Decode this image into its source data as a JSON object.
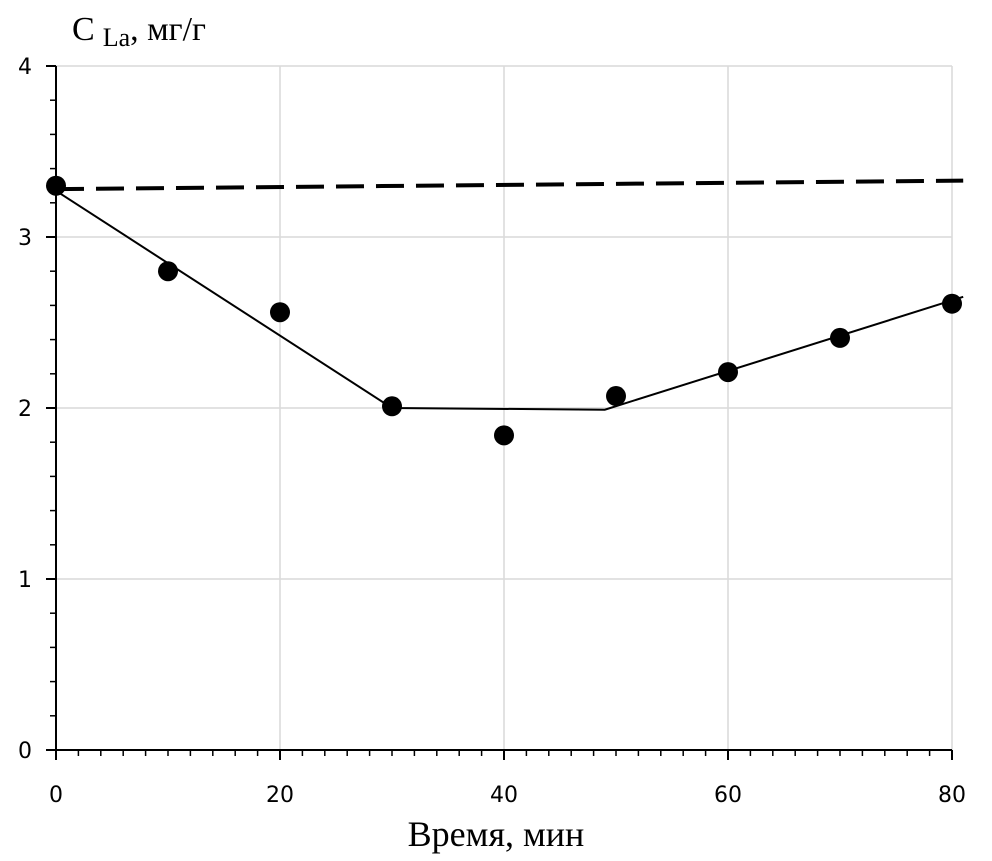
{
  "chart_data": {
    "type": "scatter",
    "y_title": {
      "main": "C",
      "sub": "La",
      "unit": ", мг/г"
    },
    "xlabel": "Время, мин",
    "xlim": [
      0,
      80
    ],
    "ylim": [
      0,
      4
    ],
    "x_ticks": [
      0,
      20,
      40,
      60,
      80
    ],
    "x_tick_labels": [
      "0",
      "20",
      "40",
      "60",
      "80"
    ],
    "y_ticks": [
      0,
      1,
      2,
      3,
      4
    ],
    "y_tick_labels": [
      "0",
      "1",
      "2",
      "3",
      "4"
    ],
    "x_minor_step": 2,
    "y_minor_step": 0.2,
    "grid": true,
    "series": [
      {
        "type": "scatter",
        "x": [
          0,
          10,
          20,
          30,
          40,
          50,
          60,
          70,
          80
        ],
        "y": [
          3.3,
          2.8,
          2.56,
          2.01,
          1.84,
          2.07,
          2.21,
          2.41,
          2.61
        ],
        "color": "#000000"
      },
      {
        "type": "line",
        "style": "solid",
        "x": [
          0,
          30,
          49,
          81
        ],
        "y": [
          3.27,
          2.0,
          1.99,
          2.65
        ],
        "color": "#000000"
      },
      {
        "type": "line",
        "style": "dashed",
        "x": [
          0,
          81
        ],
        "y": [
          3.28,
          3.33
        ],
        "color": "#000000"
      }
    ]
  }
}
